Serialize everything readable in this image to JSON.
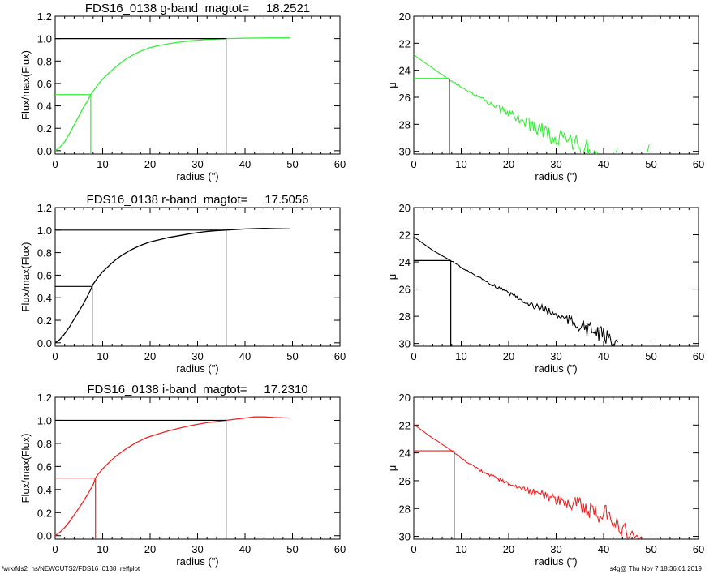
{
  "footer": {
    "left": "/wrk/fds2_hs/NEWCUTS2/FDS16_0138_reffplot",
    "right": "s4g@  Thu Nov  7 18:36:01 2019"
  },
  "chart_data": [
    {
      "type": "line",
      "band": "g",
      "title": "FDS16_0138 g-band  magtot=     18.2521",
      "xlabel": "radius (\")",
      "ylabel": "Flux/max(Flux)",
      "xlim": [
        0,
        60
      ],
      "ylim": [
        -0.03,
        1.2
      ],
      "xticks": [
        0,
        10,
        20,
        30,
        40,
        50,
        60
      ],
      "yticks": [
        0.0,
        0.2,
        0.4,
        0.6,
        0.8,
        1.0,
        1.2
      ],
      "ytick_labels": [
        "0.0",
        "0.2",
        "0.4",
        "0.6",
        "0.8",
        "1.0",
        "1.2"
      ],
      "color": "#33ee33",
      "x": [
        0,
        1,
        2,
        3,
        4,
        5,
        6,
        7,
        7.5,
        8,
        9,
        10,
        11,
        12,
        13,
        14,
        15,
        16,
        17,
        18,
        19,
        20,
        22,
        24,
        26,
        28,
        30,
        32,
        34,
        36,
        38,
        40,
        42,
        45,
        49.5
      ],
      "y": [
        0.0,
        0.03,
        0.08,
        0.15,
        0.23,
        0.31,
        0.39,
        0.46,
        0.5,
        0.53,
        0.59,
        0.64,
        0.68,
        0.72,
        0.755,
        0.79,
        0.82,
        0.845,
        0.868,
        0.888,
        0.905,
        0.92,
        0.94,
        0.955,
        0.968,
        0.978,
        0.986,
        0.992,
        0.996,
        1.0,
        1.002,
        1.004,
        1.005,
        1.006,
        1.006
      ],
      "half_light_radius": 7.5,
      "half_light_flux": 0.5,
      "total_radius": 36,
      "total_flux": 1.0
    },
    {
      "type": "line",
      "band": "g",
      "title": "",
      "xlabel": "radius (\")",
      "ylabel": "μ",
      "xlim": [
        0,
        60
      ],
      "ylim": [
        30.2,
        20
      ],
      "y_inverted": true,
      "xticks": [
        0,
        10,
        20,
        30,
        40,
        50,
        60
      ],
      "yticks": [
        20,
        22,
        24,
        26,
        28,
        30
      ],
      "ytick_labels": [
        "20",
        "22",
        "24",
        "26",
        "28",
        "30"
      ],
      "color": "#33ee33",
      "x": [
        0,
        1,
        2,
        3,
        4,
        5,
        6,
        7,
        8,
        9,
        10,
        11,
        12,
        13,
        14,
        15,
        16,
        17,
        18,
        19,
        20,
        21,
        22,
        23,
        24,
        25,
        26,
        27,
        28,
        29,
        30,
        31,
        32,
        33,
        34,
        35,
        36,
        37,
        38,
        39,
        42.6,
        43,
        49.2,
        49.6
      ],
      "y": [
        22.85,
        23.1,
        23.35,
        23.6,
        23.85,
        24.1,
        24.35,
        24.6,
        24.8,
        25.0,
        25.25,
        25.45,
        25.65,
        25.85,
        26.05,
        26.2,
        26.45,
        26.6,
        26.8,
        27.0,
        27.15,
        27.35,
        27.55,
        27.75,
        27.95,
        28.1,
        28.3,
        28.5,
        28.7,
        28.85,
        29.0,
        29.15,
        29.3,
        29.4,
        29.5,
        29.6,
        29.7,
        29.8,
        29.9,
        30.0,
        30.1,
        29.7,
        30.1,
        29.5
      ],
      "noise": [
        0,
        0,
        0,
        0,
        0,
        0,
        0.05,
        0.05,
        0.08,
        0.08,
        0.1,
        0.1,
        0.12,
        0.12,
        0.15,
        0.15,
        0.2,
        0.2,
        0.25,
        0.25,
        0.3,
        0.35,
        0.4,
        0.4,
        0.5,
        0.5,
        0.6,
        0.6,
        0.7,
        0.7,
        0.8,
        0.8,
        0.8,
        0.8,
        0.8,
        0.8,
        0.8,
        0.8,
        0.8,
        0.8,
        0,
        0,
        0,
        0
      ],
      "half_light_radius": 7.5,
      "half_light_mu": 24.6
    },
    {
      "type": "line",
      "band": "r",
      "title": "FDS16_0138 r-band  magtot=     17.5056",
      "xlabel": "radius (\")",
      "ylabel": "Flux/max(Flux)",
      "xlim": [
        0,
        60
      ],
      "ylim": [
        -0.03,
        1.2
      ],
      "xticks": [
        0,
        10,
        20,
        30,
        40,
        50,
        60
      ],
      "yticks": [
        0.0,
        0.2,
        0.4,
        0.6,
        0.8,
        1.0,
        1.2
      ],
      "ytick_labels": [
        "0.0",
        "0.2",
        "0.4",
        "0.6",
        "0.8",
        "1.0",
        "1.2"
      ],
      "color": "#000000",
      "x": [
        0,
        1,
        2,
        3,
        4,
        5,
        6,
        7,
        7.8,
        8,
        9,
        10,
        11,
        12,
        13,
        14,
        15,
        16,
        17,
        18,
        19,
        20,
        22,
        24,
        26,
        28,
        30,
        32,
        34,
        36,
        38,
        40,
        42,
        44,
        46,
        49.5
      ],
      "y": [
        0.0,
        0.03,
        0.08,
        0.14,
        0.21,
        0.28,
        0.35,
        0.43,
        0.5,
        0.52,
        0.58,
        0.63,
        0.67,
        0.71,
        0.745,
        0.775,
        0.8,
        0.825,
        0.845,
        0.865,
        0.88,
        0.895,
        0.915,
        0.935,
        0.95,
        0.965,
        0.978,
        0.988,
        0.995,
        1.0,
        1.005,
        1.01,
        1.013,
        1.015,
        1.013,
        1.01
      ],
      "half_light_radius": 7.8,
      "half_light_flux": 0.5,
      "total_radius": 36,
      "total_flux": 1.0
    },
    {
      "type": "line",
      "band": "r",
      "title": "",
      "xlabel": "radius (\")",
      "ylabel": "μ",
      "xlim": [
        0,
        60
      ],
      "ylim": [
        30.2,
        20
      ],
      "y_inverted": true,
      "xticks": [
        0,
        10,
        20,
        30,
        40,
        50,
        60
      ],
      "yticks": [
        20,
        22,
        24,
        26,
        28,
        30
      ],
      "ytick_labels": [
        "20",
        "22",
        "24",
        "26",
        "28",
        "30"
      ],
      "color": "#000000",
      "x": [
        0,
        1,
        2,
        3,
        4,
        5,
        6,
        7,
        8,
        9,
        10,
        11,
        12,
        13,
        14,
        15,
        16,
        17,
        18,
        19,
        20,
        21,
        22,
        23,
        24,
        25,
        26,
        27,
        28,
        29,
        30,
        31,
        32,
        33,
        34,
        35,
        36,
        37,
        38,
        39,
        40,
        41,
        42,
        43
      ],
      "y": [
        22.15,
        22.4,
        22.65,
        22.9,
        23.15,
        23.35,
        23.55,
        23.75,
        23.95,
        24.15,
        24.4,
        24.6,
        24.8,
        25.0,
        25.2,
        25.4,
        25.6,
        25.75,
        25.95,
        26.1,
        26.3,
        26.45,
        26.65,
        26.8,
        27.0,
        27.15,
        27.3,
        27.45,
        27.6,
        27.75,
        27.9,
        28.05,
        28.2,
        28.35,
        28.5,
        28.65,
        28.8,
        28.95,
        29.1,
        29.25,
        29.45,
        29.6,
        29.75,
        29.9
      ],
      "noise": [
        0,
        0,
        0,
        0,
        0,
        0,
        0,
        0,
        0.04,
        0.04,
        0.05,
        0.05,
        0.06,
        0.06,
        0.08,
        0.08,
        0.1,
        0.1,
        0.12,
        0.12,
        0.15,
        0.15,
        0.18,
        0.2,
        0.2,
        0.25,
        0.25,
        0.3,
        0.3,
        0.35,
        0.35,
        0.4,
        0.4,
        0.45,
        0.5,
        0.5,
        0.55,
        0.6,
        0.6,
        0.6,
        0.6,
        0.5,
        0.4,
        0.3
      ],
      "half_light_radius": 7.8,
      "half_light_mu": 23.9
    },
    {
      "type": "line",
      "band": "i",
      "title": "FDS16_0138 i-band  magtot=     17.2310",
      "xlabel": "radius (\")",
      "ylabel": "Flux/max(Flux)",
      "xlim": [
        0,
        60
      ],
      "ylim": [
        -0.03,
        1.2
      ],
      "xticks": [
        0,
        10,
        20,
        30,
        40,
        50,
        60
      ],
      "yticks": [
        0.0,
        0.2,
        0.4,
        0.6,
        0.8,
        1.0,
        1.2
      ],
      "ytick_labels": [
        "0.0",
        "0.2",
        "0.4",
        "0.6",
        "0.8",
        "1.0",
        "1.2"
      ],
      "color": "#ee2222",
      "x": [
        0,
        1,
        2,
        3,
        4,
        5,
        6,
        7,
        8,
        8.5,
        9,
        10,
        11,
        12,
        13,
        14,
        15,
        16,
        17,
        18,
        19,
        20,
        22,
        24,
        26,
        28,
        30,
        32,
        34,
        36,
        38,
        40,
        42,
        44,
        46,
        49.5
      ],
      "y": [
        0.0,
        0.03,
        0.07,
        0.12,
        0.18,
        0.24,
        0.3,
        0.37,
        0.44,
        0.5,
        0.53,
        0.58,
        0.62,
        0.66,
        0.695,
        0.725,
        0.755,
        0.78,
        0.805,
        0.825,
        0.845,
        0.86,
        0.885,
        0.91,
        0.93,
        0.95,
        0.965,
        0.98,
        0.99,
        1.0,
        1.01,
        1.02,
        1.03,
        1.03,
        1.025,
        1.02
      ],
      "half_light_radius": 8.5,
      "half_light_flux": 0.5,
      "total_radius": 36,
      "total_flux": 1.0
    },
    {
      "type": "line",
      "band": "i",
      "title": "",
      "xlabel": "radius (\")",
      "ylabel": "μ",
      "xlim": [
        0,
        60
      ],
      "ylim": [
        30.2,
        20
      ],
      "y_inverted": true,
      "xticks": [
        0,
        10,
        20,
        30,
        40,
        50,
        60
      ],
      "yticks": [
        20,
        22,
        24,
        26,
        28,
        30
      ],
      "ytick_labels": [
        "20",
        "22",
        "24",
        "26",
        "28",
        "30"
      ],
      "color": "#ee2222",
      "x": [
        0,
        1,
        2,
        3,
        4,
        5,
        6,
        7,
        8,
        9,
        10,
        11,
        12,
        13,
        14,
        15,
        16,
        17,
        18,
        19,
        20,
        21,
        22,
        23,
        24,
        25,
        26,
        27,
        28,
        29,
        30,
        31,
        32,
        33,
        34,
        35,
        36,
        37,
        38,
        39,
        40,
        41,
        42,
        43,
        44,
        46,
        48
      ],
      "y": [
        21.95,
        22.2,
        22.45,
        22.7,
        22.95,
        23.15,
        23.4,
        23.6,
        23.85,
        24.1,
        24.35,
        24.6,
        24.85,
        25.05,
        25.25,
        25.45,
        25.6,
        25.75,
        25.9,
        26.05,
        26.2,
        26.3,
        26.45,
        26.55,
        26.7,
        26.8,
        26.9,
        27.0,
        27.1,
        27.2,
        27.3,
        27.4,
        27.5,
        27.6,
        27.7,
        27.8,
        27.9,
        28.0,
        28.1,
        28.25,
        28.4,
        28.6,
        28.8,
        29.2,
        29.5,
        29.8,
        30.0
      ],
      "noise": [
        0,
        0,
        0,
        0,
        0,
        0,
        0,
        0,
        0.04,
        0.04,
        0.05,
        0.06,
        0.08,
        0.08,
        0.1,
        0.1,
        0.12,
        0.12,
        0.15,
        0.15,
        0.18,
        0.18,
        0.2,
        0.2,
        0.25,
        0.25,
        0.3,
        0.3,
        0.35,
        0.35,
        0.4,
        0.4,
        0.5,
        0.5,
        0.6,
        0.6,
        0.7,
        0.7,
        0.8,
        0.8,
        0.8,
        0.8,
        0.7,
        0.6,
        0.5,
        0.3,
        0.2
      ],
      "half_light_radius": 8.5,
      "half_light_mu": 23.85
    }
  ]
}
